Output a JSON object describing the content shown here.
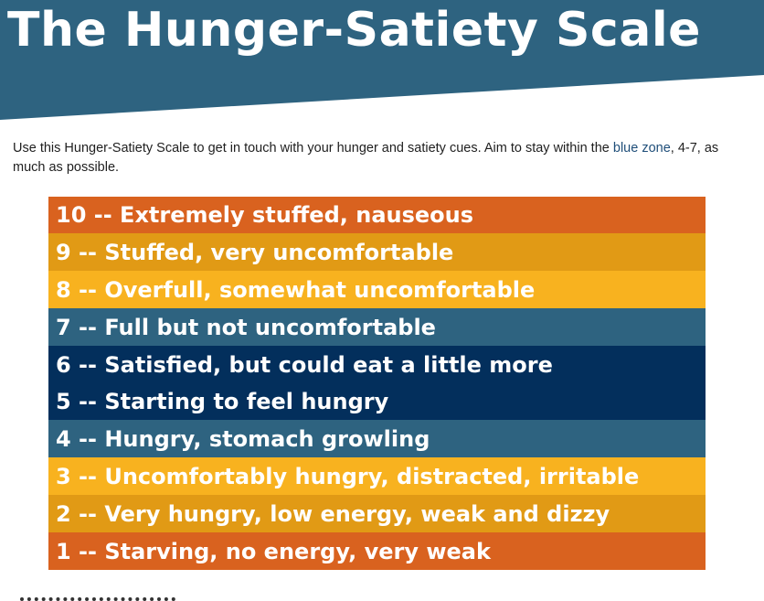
{
  "header": {
    "title": "The Hunger-Satiety Scale",
    "band_color": "#2e6380"
  },
  "intro": {
    "text_before": "Use this Hunger-Satiety Scale to get in touch with your hunger and satiety cues. Aim to stay within the ",
    "highlight": "blue zone",
    "text_after": ", 4-7, as much as possible.",
    "highlight_color": "#1f4e79"
  },
  "scale": {
    "rows": [
      {
        "level": "10",
        "label": "Extremely stuffed, nauseous",
        "color": "#d9621f"
      },
      {
        "level": "9",
        "label": "Stuffed, very uncomfortable",
        "color": "#e19a15"
      },
      {
        "level": "8",
        "label": "Overfull, somewhat uncomfortable",
        "color": "#f8b21f"
      },
      {
        "level": "7",
        "label": "Full but not uncomfortable",
        "color": "#2e6380"
      },
      {
        "level": "6",
        "label": "Satisfied, but could eat a little more",
        "color": "#032f5c"
      },
      {
        "level": "5",
        "label": "Starting to feel hungry",
        "color": "#032f5c"
      },
      {
        "level": "4",
        "label": "Hungry, stomach growling",
        "color": "#2e6380"
      },
      {
        "level": "3",
        "label": "Uncomfortably hungry, distracted, irritable",
        "color": "#f8b21f"
      },
      {
        "level": "2",
        "label": "Very hungry, low energy, weak and dizzy",
        "color": "#e19a15"
      },
      {
        "level": "1",
        "label": "Starving, no energy, very weak",
        "color": "#d9621f"
      }
    ],
    "separator": " -- "
  }
}
